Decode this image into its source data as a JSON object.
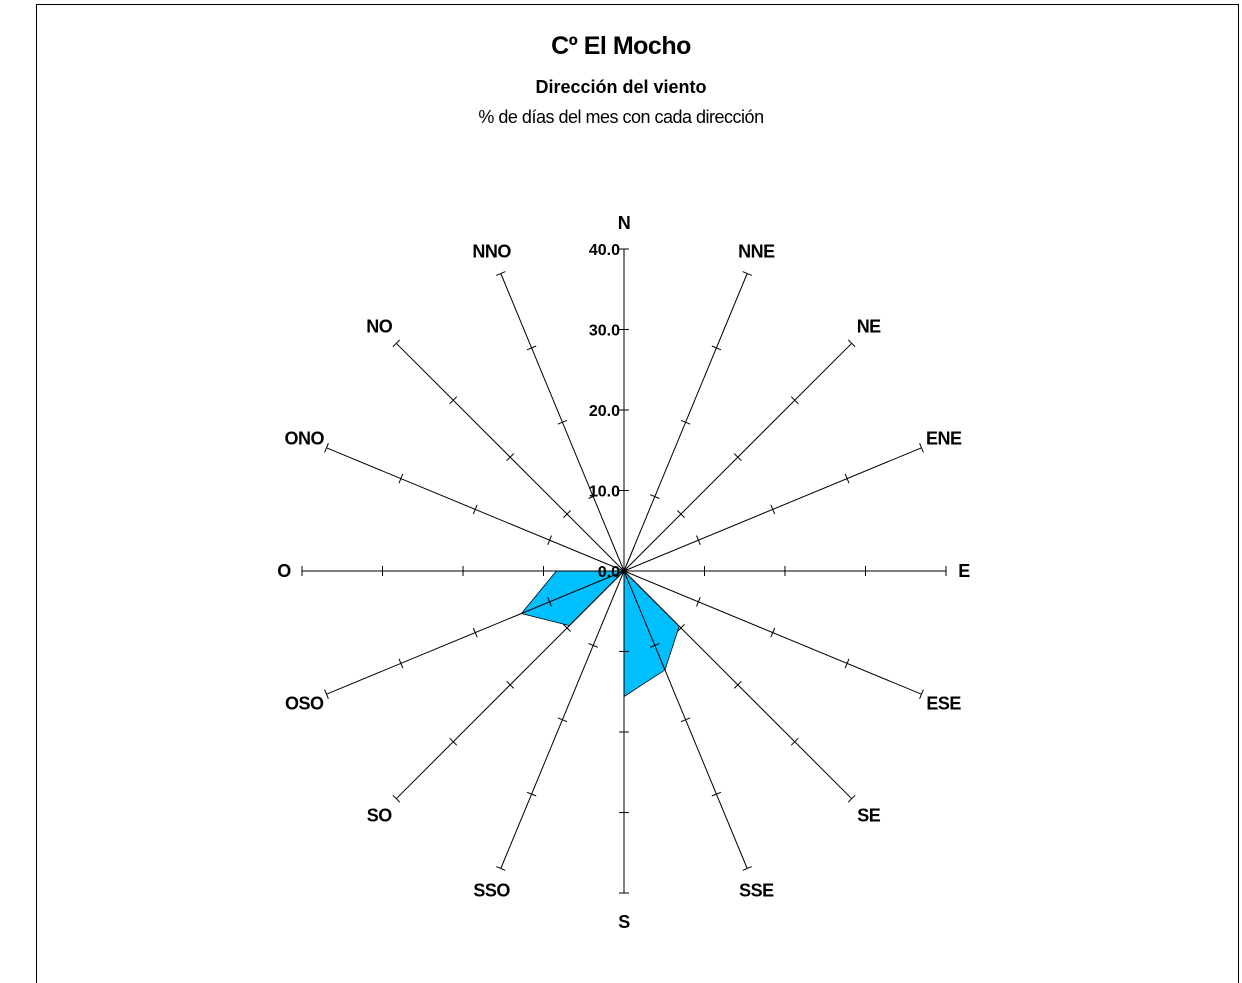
{
  "chart_data": {
    "type": "radar",
    "title": "Cº El Mocho",
    "subtitle": "Dirección del viento",
    "subtitle2": "% de días del mes con cada dirección",
    "directions": [
      "N",
      "NNE",
      "NE",
      "ENE",
      "E",
      "ESE",
      "SE",
      "SSE",
      "S",
      "SSO",
      "SO",
      "OSO",
      "O",
      "ONO",
      "NO",
      "NNO"
    ],
    "radial_ticks": [
      "0.0",
      "10.0",
      "20.0",
      "30.0",
      "40.0"
    ],
    "rmax": 40,
    "series": [
      {
        "values": [
          0,
          3.2,
          0,
          0,
          0,
          0,
          9.7,
          13.3,
          15.6,
          0,
          9.6,
          13.8,
          8.4,
          0,
          0,
          0
        ],
        "color": "#00BFFF"
      }
    ]
  }
}
